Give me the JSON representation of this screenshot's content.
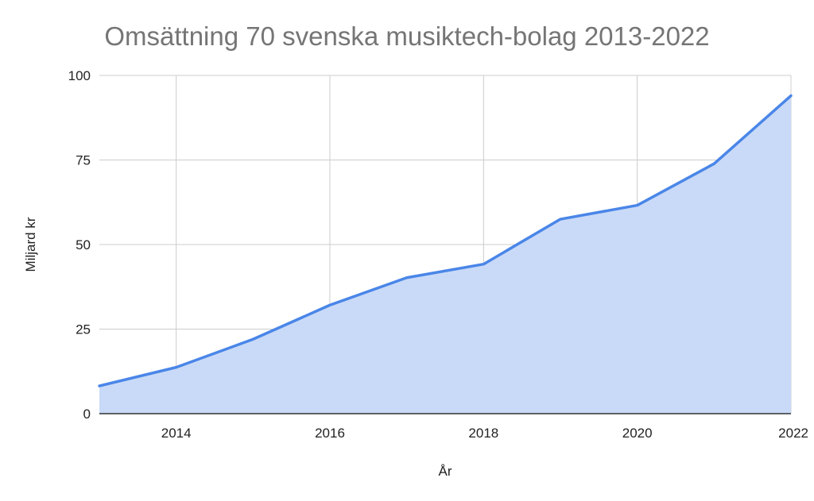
{
  "chart_data": {
    "type": "area",
    "title": "Omsättning 70 svenska musiktech-bolag 2013-2022",
    "xlabel": "År",
    "ylabel": "Miljard kr",
    "x": [
      2013,
      2014,
      2015,
      2016,
      2017,
      2018,
      2019,
      2020,
      2021,
      2022
    ],
    "series": [
      {
        "values": [
          8.2,
          13.7,
          22.0,
          32.1,
          40.2,
          44.2,
          57.5,
          61.6,
          73.9,
          94.0
        ],
        "line_color": "#4a86e8",
        "fill_color": "#c9daf8"
      }
    ],
    "xlim": [
      2013,
      2022
    ],
    "ylim": [
      0,
      100
    ],
    "x_ticks": [
      2014,
      2016,
      2018,
      2020,
      2022
    ],
    "y_ticks": [
      0,
      25,
      50,
      75,
      100
    ],
    "grid": true,
    "legend": "none"
  }
}
